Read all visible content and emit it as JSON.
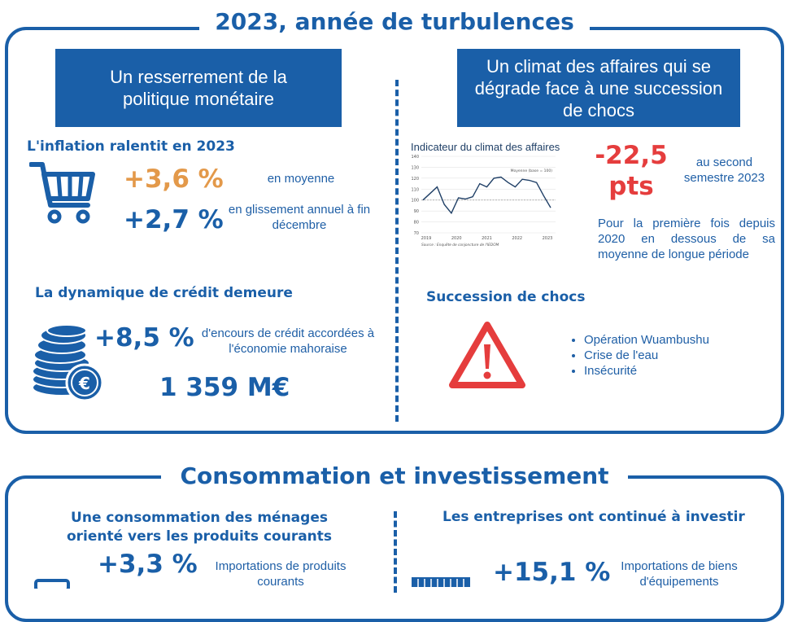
{
  "section1": {
    "title": "2023, année de turbulences",
    "left": {
      "box_label": "Un resserrement de la politique monétaire",
      "inflation_title": "L'inflation ralentit en 2023",
      "inflation_avg_value": "+3,6 %",
      "inflation_avg_label": "en moyenne",
      "inflation_yoy_value": "+2,7 %",
      "inflation_yoy_label": "en glissement annuel à fin décembre",
      "credit_title": "La dynamique de crédit demeure",
      "credit_value": "+8,5 %",
      "credit_label": "d'encours de crédit accordées à l'économie mahoraise",
      "credit_amount": "1 359 M€"
    },
    "right": {
      "box_label": "Un climat des affaires qui se dégrade face à une succession de chocs",
      "chart_title": "Indicateur du climat des affaires",
      "drop_value": "-22,5 pts",
      "drop_label": "au second semestre 2023",
      "drop_note": "Pour la première fois depuis 2020 en dessous de sa moyenne de longue période",
      "shocks_title": "Succession de chocs",
      "shocks": [
        "Opération Wuambushu",
        "Crise de l'eau",
        "Insécurité"
      ]
    }
  },
  "section2": {
    "title": "Consommation et investissement",
    "left_title": "Une consommation des ménages orienté vers les produits courants",
    "left_value": "+3,3 %",
    "left_label": "Importations de produits courants",
    "right_title": "Les entreprises ont continué à investir",
    "right_value": "+15,1 %",
    "right_label": "Importations de biens d'équipements"
  },
  "chart_data": {
    "type": "line",
    "title": "Indicateur du climat des affaires",
    "ylim": [
      70,
      140
    ],
    "yticks": [
      70,
      80,
      90,
      100,
      110,
      120,
      130,
      140
    ],
    "xticks": [
      "2019",
      "2020",
      "2021",
      "2022",
      "2023"
    ],
    "legend": "Moyenne (base = 100)",
    "source": "Source : Enquête de conjoncture de l'IEDOM",
    "series": [
      {
        "values": [
          100,
          106,
          112,
          96,
          88,
          102,
          101,
          103,
          115,
          112,
          120,
          121,
          116,
          112,
          119,
          118,
          116,
          104,
          93
        ]
      }
    ],
    "baseline": 100
  },
  "colors": {
    "primary": "#1a5fa8",
    "orange": "#e3994a",
    "red": "#e53d3d"
  }
}
